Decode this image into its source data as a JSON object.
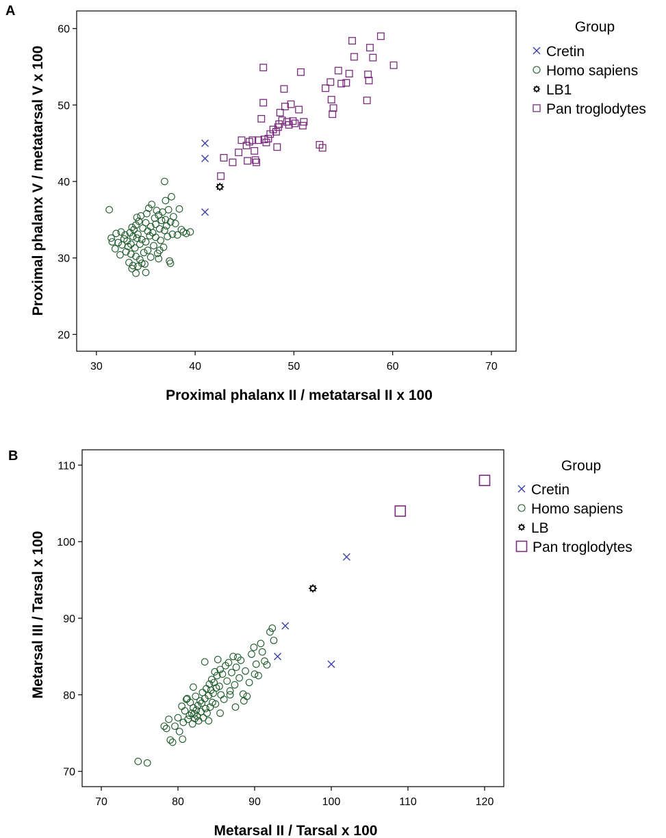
{
  "colors": {
    "Cretin": "#3a3fa8",
    "Homo sapiens": "#1b5a28",
    "LB": "#000000",
    "Pan troglodytes": "#7a2a7e"
  },
  "chart_data": [
    {
      "panel_label": "A",
      "type": "scatter",
      "xlabel": "Proximal phalanx II / metatarsal II x 100",
      "ylabel": "Proximal phalanx V / metatarsal V x 100",
      "xlim": [
        28,
        72.5
      ],
      "ylim": [
        17.8,
        62.3
      ],
      "xticks": [
        30,
        40,
        50,
        60,
        70
      ],
      "yticks": [
        20,
        30,
        40,
        50,
        60
      ],
      "grid": false,
      "legend_title": "Group",
      "legend_position": "right",
      "series": [
        {
          "name": "Cretin",
          "marker": "x",
          "x": [
            41,
            41,
            41
          ],
          "y": [
            45,
            43,
            36
          ]
        },
        {
          "name": "Homo sapiens",
          "marker": "circle",
          "x": [
            31.3,
            31.5,
            31.6,
            31.9,
            32.0,
            32.2,
            32.4,
            32.5,
            32.6,
            32.8,
            32.9,
            33.0,
            33.1,
            33.2,
            33.3,
            33.4,
            33.5,
            33.5,
            33.6,
            33.7,
            33.7,
            33.8,
            33.9,
            34.0,
            34.0,
            34.1,
            34.1,
            34.2,
            34.2,
            34.3,
            34.4,
            34.4,
            34.5,
            34.6,
            34.7,
            34.8,
            34.9,
            35.0,
            35.0,
            35.1,
            35.2,
            35.2,
            35.3,
            35.4,
            35.5,
            35.5,
            35.6,
            35.7,
            35.8,
            35.9,
            36.0,
            36.0,
            36.1,
            36.2,
            36.3,
            36.4,
            36.5,
            36.6,
            36.7,
            36.8,
            36.9,
            37.0,
            37.0,
            37.1,
            37.2,
            37.3,
            37.4,
            37.5,
            37.6,
            37.7,
            37.8,
            38.0,
            38.2,
            38.4,
            38.6,
            38.8,
            39.1,
            39.5,
            36.9,
            37.5,
            36.4,
            35.0,
            34.0,
            33.6,
            34.6,
            36.3
          ],
          "y": [
            36.3,
            32.6,
            32.1,
            31.2,
            33.2,
            32.0,
            30.4,
            33.4,
            31.7,
            32.5,
            33.0,
            30.8,
            32.2,
            31.5,
            29.4,
            33.3,
            31.8,
            30.5,
            34.0,
            29.0,
            32.8,
            33.7,
            31.3,
            34.3,
            30.2,
            32.6,
            35.3,
            33.1,
            28.9,
            34.8,
            31.8,
            29.8,
            35.5,
            32.4,
            33.9,
            30.7,
            29.2,
            34.6,
            32.1,
            35.8,
            31.0,
            33.5,
            36.5,
            32.9,
            30.1,
            34.1,
            37.0,
            33.3,
            31.6,
            35.2,
            32.7,
            34.4,
            36.2,
            30.6,
            35.6,
            33.8,
            32.3,
            34.9,
            36.0,
            31.4,
            33.6,
            35.0,
            37.5,
            34.2,
            32.8,
            36.3,
            29.6,
            34.7,
            38.0,
            33.1,
            35.4,
            34.5,
            33.0,
            36.4,
            33.7,
            33.4,
            33.2,
            33.4,
            40.0,
            29.3,
            31.0,
            28.1,
            28.0,
            28.6,
            29.3,
            29.9
          ]
        },
        {
          "name": "LB1",
          "marker": "star",
          "x": [
            42.5
          ],
          "y": [
            39.3
          ]
        },
        {
          "name": "Pan troglodytes",
          "marker": "square",
          "x": [
            42.6,
            42.9,
            43.8,
            44.4,
            44.7,
            45.2,
            45.3,
            45.5,
            45.8,
            46.0,
            46.1,
            46.2,
            46.4,
            46.7,
            46.9,
            47.0,
            47.2,
            47.4,
            47.6,
            47.9,
            48.2,
            48.3,
            48.4,
            48.5,
            48.6,
            48.8,
            49.0,
            49.1,
            49.3,
            49.5,
            49.7,
            49.9,
            50.1,
            50.5,
            50.7,
            50.9,
            51.0,
            52.6,
            52.9,
            53.2,
            53.7,
            53.8,
            53.9,
            54.0,
            54.5,
            54.8,
            55.3,
            55.6,
            55.9,
            56.1,
            57.4,
            57.6,
            57.5,
            57.7,
            58.0,
            58.8,
            60.1,
            46.9
          ],
          "y": [
            40.7,
            43.1,
            42.5,
            43.8,
            45.4,
            44.7,
            42.7,
            45.2,
            45.4,
            44.0,
            42.8,
            42.5,
            45.4,
            48.2,
            50.3,
            45.5,
            45.1,
            45.6,
            46.2,
            46.8,
            46.5,
            44.5,
            47.1,
            47.5,
            49.0,
            48.0,
            52.1,
            49.8,
            47.8,
            47.4,
            50.1,
            47.9,
            47.6,
            49.4,
            54.3,
            47.3,
            47.8,
            44.8,
            44.4,
            52.2,
            53.0,
            50.7,
            48.8,
            49.6,
            54.5,
            52.8,
            52.9,
            54.1,
            58.4,
            56.3,
            50.6,
            53.2,
            54.0,
            57.5,
            56.2,
            59.0,
            55.2,
            54.9
          ]
        }
      ]
    },
    {
      "panel_label": "B",
      "type": "scatter",
      "xlabel": "Metarsal II / Tarsal x 100",
      "ylabel": "Metarsal III / Tarsal x 100",
      "xlim": [
        67.5,
        122.5
      ],
      "ylim": [
        68.0,
        112.0
      ],
      "xticks": [
        70,
        80,
        90,
        100,
        110,
        120
      ],
      "yticks": [
        70,
        80,
        90,
        100,
        110
      ],
      "grid": false,
      "legend_title": "Group",
      "legend_position": "right",
      "series": [
        {
          "name": "Cretin",
          "marker": "x",
          "x": [
            102,
            94,
            93,
            100
          ],
          "y": [
            98,
            89,
            85,
            84
          ]
        },
        {
          "name": "Homo sapiens",
          "marker": "circle",
          "x": [
            74.8,
            76.0,
            78.2,
            78.5,
            78.8,
            79.0,
            79.3,
            79.6,
            80.0,
            80.2,
            80.5,
            80.7,
            80.9,
            81.1,
            81.3,
            81.5,
            81.6,
            81.8,
            81.9,
            82.0,
            82.1,
            82.2,
            82.3,
            82.4,
            82.5,
            82.6,
            82.7,
            82.9,
            83.0,
            83.1,
            83.2,
            83.3,
            83.5,
            83.6,
            83.7,
            83.8,
            84.0,
            84.1,
            84.2,
            84.3,
            84.4,
            84.5,
            84.6,
            84.7,
            84.8,
            84.9,
            85.0,
            85.1,
            85.2,
            85.4,
            85.5,
            85.6,
            85.8,
            86.0,
            86.2,
            86.4,
            86.6,
            86.8,
            87.0,
            87.2,
            87.4,
            87.6,
            87.8,
            88.0,
            88.2,
            88.5,
            88.8,
            89.0,
            89.3,
            89.6,
            89.9,
            90.2,
            90.5,
            90.8,
            91.0,
            91.3,
            91.6,
            92.0,
            92.3,
            92.5,
            80.6,
            82.0,
            83.5,
            84.0,
            85.5,
            86.8,
            88.6,
            81.2,
            90.0,
            87.5
          ],
          "y": [
            71.3,
            71.1,
            75.9,
            75.6,
            76.8,
            74.1,
            73.8,
            75.9,
            77.0,
            75.2,
            78.5,
            76.4,
            77.9,
            79.4,
            76.8,
            77.3,
            79.0,
            77.6,
            76.2,
            78.3,
            77.5,
            76.9,
            79.8,
            78.0,
            77.2,
            78.6,
            76.6,
            79.2,
            77.8,
            78.9,
            80.3,
            77.0,
            79.5,
            78.2,
            80.8,
            77.6,
            79.9,
            81.4,
            78.4,
            80.6,
            82.0,
            79.0,
            80.2,
            81.6,
            83.0,
            78.8,
            80.9,
            82.5,
            84.6,
            81.1,
            83.3,
            80.0,
            82.7,
            79.4,
            83.8,
            81.8,
            84.2,
            80.5,
            82.9,
            85.0,
            81.3,
            83.6,
            84.9,
            82.2,
            84.5,
            80.1,
            83.1,
            79.8,
            81.6,
            85.3,
            86.2,
            84.0,
            82.5,
            86.7,
            85.6,
            84.4,
            83.9,
            88.2,
            88.7,
            87.1,
            74.2,
            81.0,
            84.3,
            76.6,
            77.6,
            80.0,
            79.2,
            79.5,
            82.7,
            78.4
          ]
        },
        {
          "name": "LB",
          "marker": "star",
          "x": [
            97.6
          ],
          "y": [
            93.9
          ]
        },
        {
          "name": "Pan troglodytes",
          "marker": "square-large",
          "x": [
            109,
            120
          ],
          "y": [
            104,
            108
          ]
        }
      ]
    }
  ]
}
